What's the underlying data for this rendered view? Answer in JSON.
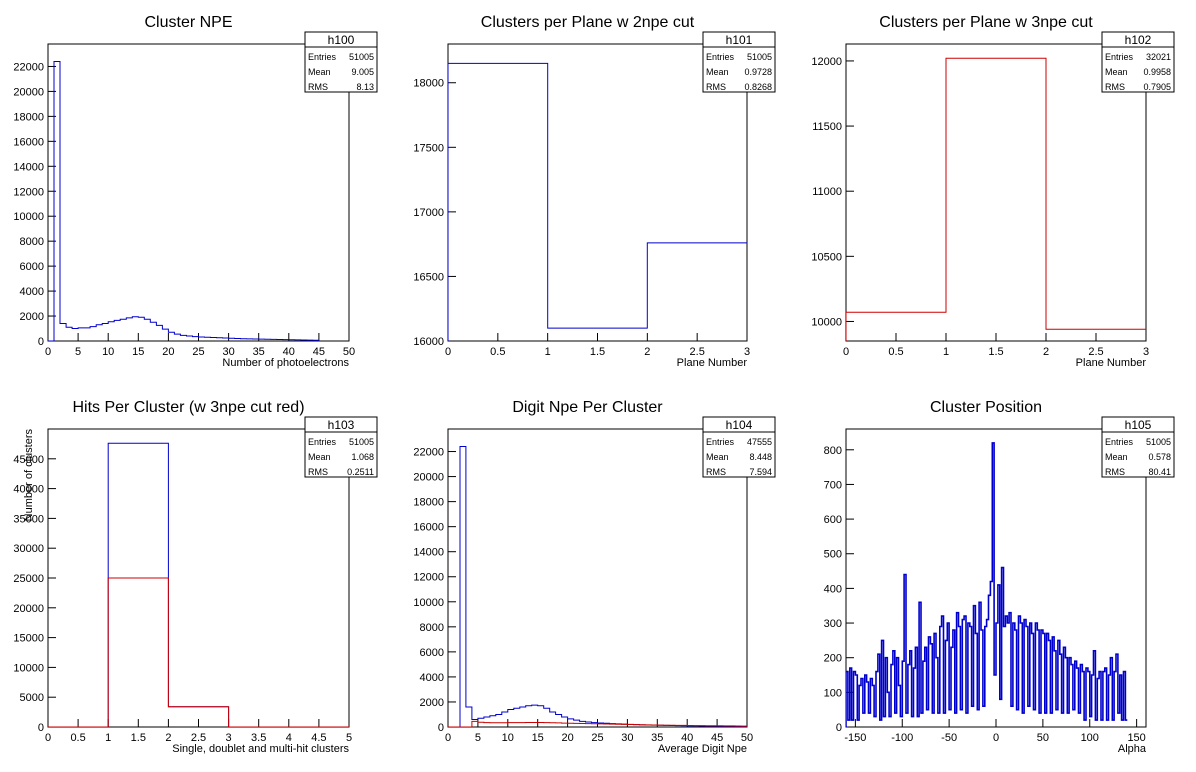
{
  "chart_data": [
    {
      "id": "h100",
      "type": "histogram",
      "title": "Cluster NPE",
      "xlabel": "Number of photoelectrons",
      "ylabel": "",
      "xlim": [
        0,
        50
      ],
      "ylim": [
        0,
        23800
      ],
      "xticks": [
        "0",
        "5",
        "10",
        "15",
        "20",
        "25",
        "30",
        "35",
        "40",
        "45",
        "50"
      ],
      "yticks": [
        "0",
        "2000",
        "4000",
        "6000",
        "8000",
        "10000",
        "12000",
        "14000",
        "16000",
        "18000",
        "20000",
        "22000"
      ],
      "stats": {
        "Entries": "51005",
        "Mean": "9.005",
        "RMS": "8.13"
      },
      "series": [
        {
          "color": "#0000cc",
          "edges": [
            0,
            1,
            2,
            3,
            4,
            5,
            6,
            7,
            8,
            9,
            10,
            11,
            12,
            13,
            14,
            15,
            16,
            17,
            18,
            19,
            20,
            21,
            22,
            23,
            24,
            25,
            26,
            27,
            28,
            29,
            30,
            31,
            32,
            33,
            34,
            35,
            36,
            37,
            38,
            39,
            40,
            41,
            42,
            43,
            44,
            45
          ],
          "values": [
            0,
            22400,
            1400,
            1100,
            1000,
            1050,
            1050,
            1150,
            1300,
            1400,
            1550,
            1650,
            1750,
            1850,
            1950,
            1900,
            1750,
            1500,
            1250,
            950,
            700,
            550,
            450,
            400,
            350,
            320,
            300,
            280,
            260,
            240,
            220,
            200,
            180,
            170,
            160,
            150,
            140,
            130,
            120,
            110,
            100,
            90,
            80,
            70,
            60
          ]
        }
      ]
    },
    {
      "id": "h101",
      "type": "histogram",
      "title": "Clusters per Plane w 2npe cut",
      "xlabel": "Plane Number",
      "ylabel": "",
      "xlim": [
        0,
        3
      ],
      "ylim": [
        16000,
        18300
      ],
      "xticks": [
        "0",
        "0.5",
        "1",
        "1.5",
        "2",
        "2.5",
        "3"
      ],
      "yticks": [
        "16000",
        "16500",
        "17000",
        "17500",
        "18000"
      ],
      "stats": {
        "Entries": "51005",
        "Mean": "0.9728",
        "RMS": "0.8268"
      },
      "series": [
        {
          "color": "#0000cc",
          "edges": [
            0,
            1,
            2,
            3
          ],
          "values": [
            18150,
            16100,
            16760
          ]
        }
      ]
    },
    {
      "id": "h102",
      "type": "histogram",
      "title": "Clusters per Plane w 3npe cut",
      "xlabel": "Plane Number",
      "ylabel": "",
      "xlim": [
        0,
        3
      ],
      "ylim": [
        9850,
        12130
      ],
      "xticks": [
        "0",
        "0.5",
        "1",
        "1.5",
        "2",
        "2.5",
        "3"
      ],
      "yticks": [
        "10000",
        "10500",
        "11000",
        "11500",
        "12000"
      ],
      "stats": {
        "Entries": "32021",
        "Mean": "0.9958",
        "RMS": "0.7905"
      },
      "series": [
        {
          "color": "#cc0000",
          "edges": [
            0,
            1,
            2,
            3
          ],
          "values": [
            10070,
            12020,
            9940
          ]
        }
      ]
    },
    {
      "id": "h103",
      "type": "histogram",
      "title": "Hits Per Cluster (w 3npe cut red)",
      "xlabel": "Single, doublet and multi-hit clusters",
      "ylabel": "Number of clusters",
      "xlim": [
        0,
        5
      ],
      "ylim": [
        0,
        50000
      ],
      "xticks": [
        "0",
        "0.5",
        "1",
        "1.5",
        "2",
        "2.5",
        "3",
        "3.5",
        "4",
        "4.5",
        "5"
      ],
      "yticks": [
        "0",
        "5000",
        "10000",
        "15000",
        "20000",
        "25000",
        "30000",
        "35000",
        "40000",
        "45000"
      ],
      "stats": {
        "Entries": "51005",
        "Mean": "1.068",
        "RMS": "0.2511"
      },
      "series": [
        {
          "color": "#0000cc",
          "edges": [
            0,
            1,
            2,
            3,
            4,
            5
          ],
          "values": [
            0,
            47600,
            3400,
            0,
            0
          ]
        },
        {
          "color": "#cc0000",
          "edges": [
            0,
            1,
            2,
            3,
            4,
            5
          ],
          "values": [
            0,
            25000,
            3400,
            0,
            0
          ]
        }
      ]
    },
    {
      "id": "h104",
      "type": "histogram",
      "title": "Digit Npe Per Cluster",
      "xlabel": "Average Digit Npe",
      "ylabel": "",
      "xlim": [
        0,
        50
      ],
      "ylim": [
        0,
        23800
      ],
      "xticks": [
        "0",
        "5",
        "10",
        "15",
        "20",
        "25",
        "30",
        "35",
        "40",
        "45",
        "50"
      ],
      "yticks": [
        "0",
        "2000",
        "4000",
        "6000",
        "8000",
        "10000",
        "12000",
        "14000",
        "16000",
        "18000",
        "20000",
        "22000"
      ],
      "stats": {
        "Entries": "47555",
        "Mean": "8.448",
        "RMS": "7.594"
      },
      "series": [
        {
          "color": "#0000cc",
          "edges": [
            0,
            1,
            2,
            3,
            4,
            5,
            6,
            7,
            8,
            9,
            10,
            11,
            12,
            13,
            14,
            15,
            16,
            17,
            18,
            19,
            20,
            21,
            22,
            23,
            24,
            25,
            26,
            27,
            28,
            29,
            30,
            31,
            32,
            33,
            34,
            35,
            36,
            37,
            38,
            39,
            40,
            41,
            42,
            43,
            44,
            45,
            46,
            47,
            48,
            49,
            50
          ],
          "values": [
            0,
            0,
            22400,
            1600,
            600,
            700,
            800,
            900,
            1000,
            1200,
            1400,
            1500,
            1600,
            1700,
            1750,
            1700,
            1500,
            1200,
            1000,
            800,
            650,
            550,
            450,
            400,
            350,
            320,
            300,
            270,
            250,
            230,
            210,
            190,
            170,
            160,
            150,
            140,
            130,
            120,
            110,
            100,
            90,
            85,
            80,
            75,
            70,
            65,
            60,
            55,
            50,
            45
          ]
        },
        {
          "color": "#cc0000",
          "edges": [
            0,
            1,
            2,
            3,
            4,
            5,
            6,
            7,
            8,
            9,
            10,
            11,
            12,
            13,
            14,
            15,
            16,
            17,
            18,
            19,
            20,
            21,
            22,
            23,
            24,
            25,
            26,
            27,
            28,
            29,
            30,
            31,
            32,
            33,
            34,
            35,
            36,
            37,
            38,
            39,
            40,
            41,
            42,
            43,
            44,
            45,
            46,
            47,
            48,
            49,
            50
          ],
          "values": [
            0,
            0,
            0,
            0,
            450,
            380,
            350,
            340,
            340,
            340,
            350,
            350,
            350,
            360,
            360,
            360,
            350,
            340,
            330,
            310,
            300,
            290,
            280,
            270,
            260,
            250,
            240,
            230,
            220,
            210,
            200,
            190,
            180,
            170,
            160,
            150,
            140,
            135,
            130,
            125,
            120,
            115,
            110,
            105,
            100,
            95,
            90,
            85,
            80,
            75
          ]
        }
      ]
    },
    {
      "id": "h105",
      "type": "histogram",
      "title": "Cluster Position",
      "xlabel": "Alpha",
      "ylabel": "",
      "xlim": [
        -160,
        160
      ],
      "ylim": [
        0,
        860
      ],
      "xticks": [
        "-150",
        "-100",
        "-50",
        "0",
        "50",
        "100",
        "150"
      ],
      "xtickvals": [
        -150,
        -100,
        -50,
        0,
        50,
        100,
        150
      ],
      "yticks": [
        "0",
        "100",
        "200",
        "300",
        "400",
        "500",
        "600",
        "700",
        "800"
      ],
      "stats": {
        "Entries": "51005",
        "Mean": "0.578",
        "RMS": "80.41"
      },
      "series": [
        {
          "color": "#0000cc",
          "x0": -160,
          "binwidth": 2,
          "values": [
            160,
            20,
            170,
            20,
            160,
            150,
            20,
            120,
            140,
            40,
            150,
            130,
            40,
            140,
            120,
            30,
            160,
            210,
            20,
            250,
            30,
            200,
            100,
            30,
            180,
            220,
            40,
            200,
            120,
            30,
            190,
            440,
            40,
            180,
            220,
            30,
            170,
            230,
            30,
            360,
            40,
            190,
            230,
            50,
            260,
            240,
            40,
            270,
            200,
            40,
            290,
            320,
            40,
            250,
            300,
            50,
            230,
            280,
            40,
            330,
            290,
            50,
            310,
            320,
            40,
            300,
            290,
            60,
            350,
            270,
            50,
            360,
            280,
            60,
            290,
            310,
            380,
            420,
            820,
            150,
            300,
            410,
            80,
            460,
            290,
            320,
            300,
            330,
            60,
            300,
            280,
            50,
            320,
            300,
            40,
            310,
            290,
            60,
            300,
            270,
            50,
            300,
            280,
            40,
            280,
            270,
            40,
            270,
            250,
            40,
            260,
            220,
            50,
            250,
            210,
            40,
            230,
            200,
            40,
            200,
            180,
            50,
            190,
            170,
            40,
            180,
            160,
            20,
            170,
            160,
            30,
            150,
            220,
            20,
            140,
            160,
            20,
            160,
            170,
            20,
            150,
            200,
            20,
            160,
            210,
            40,
            150,
            20,
            160,
            20
          ]
        }
      ]
    }
  ]
}
